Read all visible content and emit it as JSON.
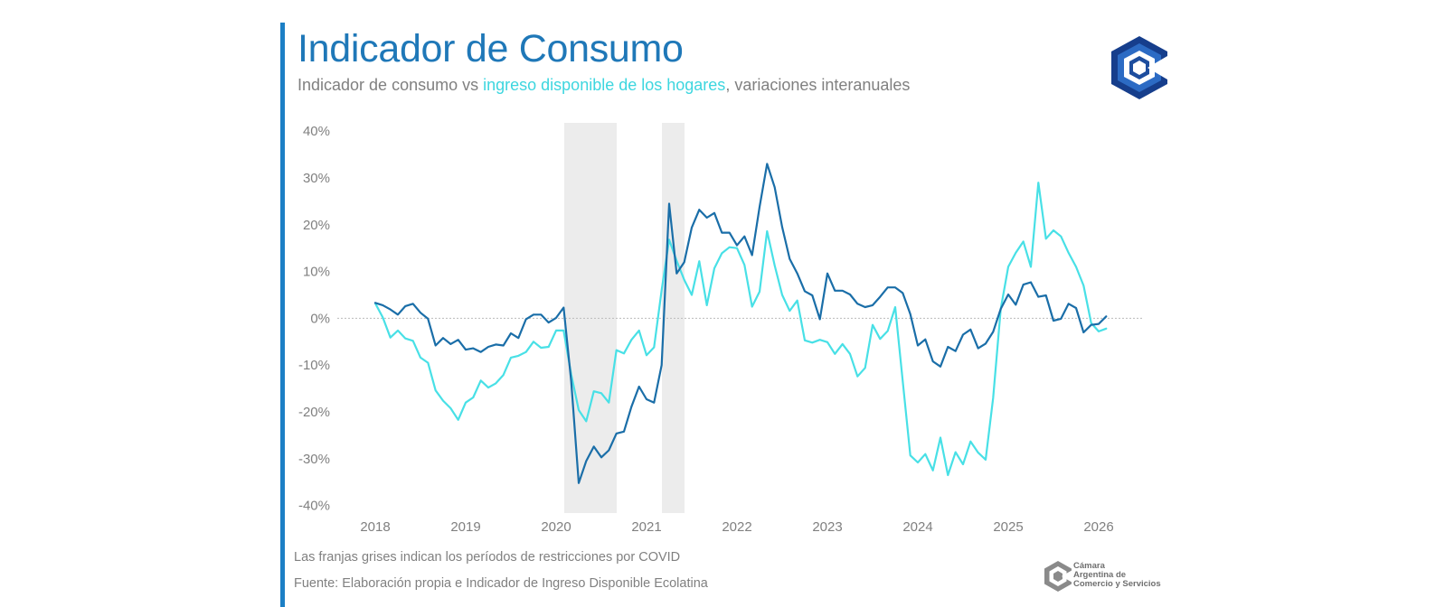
{
  "header": {
    "title": "Indicador de Consumo",
    "subtitle_part1": "Indicador de consumo vs ",
    "subtitle_highlight": "ingreso disponible de los hogares",
    "subtitle_part2": ", variaciones interanuales"
  },
  "colors": {
    "accent": "#1c7fc5",
    "title": "#1f78b8",
    "consumo": "#1a6ea8",
    "ingreso": "#48e0e6",
    "covid_band": "#ececec",
    "zero_line": "#bbbbbb",
    "axis_text": "#808080"
  },
  "notes": {
    "covid": "Las franjas grises indican los períodos de restricciones por COVID",
    "source": "Fuente: Elaboración propia e Indicador de Ingreso Disponible Ecolatina"
  },
  "footer_brand": {
    "line1": "Cámara",
    "line2": "Argentina de",
    "line3": "Comercio y Servicios"
  },
  "chart_data": {
    "type": "line",
    "title": "Indicador de Consumo",
    "xlabel": "",
    "ylabel": "",
    "x_start": 2018.0,
    "x_step_months": 1,
    "xlim": [
      2017.6,
      2026.5
    ],
    "ylim": [
      -42,
      41
    ],
    "y_ticks": [
      40,
      30,
      20,
      10,
      0,
      -10,
      -20,
      -30,
      -40
    ],
    "y_tick_labels": [
      "40%",
      "30%",
      "20%",
      "10%",
      "0%",
      "-10%",
      "-20%",
      "-30%",
      "-40%"
    ],
    "x_ticks": [
      2018,
      2019,
      2020,
      2021,
      2022,
      2023,
      2024,
      2025,
      2026
    ],
    "x_tick_labels": [
      "2018",
      "2019",
      "2020",
      "2021",
      "2022",
      "2023",
      "2024",
      "2025",
      "2026"
    ],
    "shaded_periods": [
      {
        "label": "COVID",
        "start": 2020.09,
        "end": 2020.67
      },
      {
        "label": "COVID",
        "start": 2021.17,
        "end": 2021.42
      }
    ],
    "series": [
      {
        "name": "Indicador de consumo",
        "values": [
          3.3,
          2.8,
          1.9,
          0.8,
          2.6,
          3.1,
          1.2,
          -0.1,
          -5.8,
          -4.2,
          -5.5,
          -4.6,
          -6.7,
          -6.4,
          -7.2,
          -6.1,
          -5.6,
          -5.8,
          -3.2,
          -4.2,
          -0.2,
          0.8,
          0.8,
          -0.9,
          0.1,
          2.3,
          -13.5,
          -35.2,
          -30.5,
          -27.4,
          -29.7,
          -28.2,
          -24.6,
          -24.2,
          -18.9,
          -14.6,
          -17.3,
          -18.0,
          -10.0,
          24.5,
          9.6,
          12.0,
          19.4,
          23.2,
          21.5,
          22.5,
          18.3,
          18.3,
          15.6,
          17.5,
          13.5,
          23.8,
          33.0,
          28.0,
          19.5,
          12.7,
          9.6,
          5.8,
          4.9,
          -0.2,
          9.6,
          5.9,
          5.9,
          5.1,
          3.1,
          2.4,
          2.8,
          4.6,
          6.6,
          6.6,
          5.4,
          0.9,
          -5.8,
          -4.5,
          -9.2,
          -10.3,
          -6.1,
          -7.0,
          -3.5,
          -2.4,
          -6.4,
          -5.4,
          -2.9,
          2.0,
          5.1,
          2.9,
          7.2,
          7.7,
          4.6,
          4.9,
          -0.5,
          -0.1,
          3.1,
          2.2,
          -3.0,
          -1.4,
          -1.2,
          0.4
        ]
      },
      {
        "name": "Ingreso disponible de los hogares",
        "values": [
          3.2,
          0.2,
          -4.1,
          -2.6,
          -4.3,
          -4.8,
          -8.4,
          -9.5,
          -15.4,
          -17.6,
          -19.2,
          -21.7,
          -18.0,
          -16.9,
          -13.3,
          -14.8,
          -13.9,
          -12.1,
          -8.4,
          -8.0,
          -7.2,
          -5.0,
          -6.3,
          -6.1,
          -2.6,
          -2.6,
          -12.0,
          -19.6,
          -22.0,
          -15.6,
          -16.0,
          -18.0,
          -6.8,
          -7.5,
          -4.6,
          -2.6,
          -7.9,
          -6.2,
          6.0,
          16.8,
          12.3,
          8.2,
          5.0,
          12.2,
          2.8,
          10.7,
          13.9,
          15.2,
          15.0,
          11.4,
          2.5,
          5.7,
          18.6,
          11.3,
          5.0,
          1.6,
          3.8,
          -4.7,
          -5.2,
          -4.6,
          -5.1,
          -7.6,
          -5.5,
          -7.6,
          -12.4,
          -10.6,
          -1.4,
          -4.4,
          -2.7,
          2.4,
          -13.4,
          -29.3,
          -30.8,
          -29.0,
          -32.5,
          -25.5,
          -33.5,
          -28.6,
          -31.2,
          -26.3,
          -28.7,
          -30.2,
          -17.0,
          2.0,
          11.0,
          14.0,
          16.4,
          11.0,
          29.0,
          17.0,
          18.8,
          17.5,
          14.0,
          11.0,
          7.0,
          -1.0,
          -2.8,
          -2.2
        ]
      }
    ]
  }
}
